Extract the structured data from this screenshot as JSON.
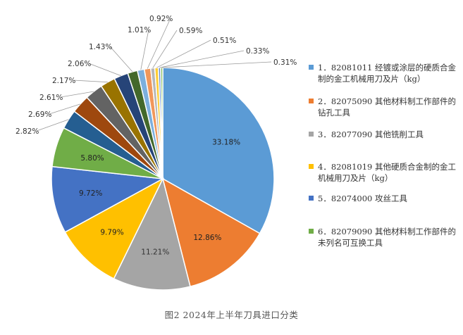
{
  "chart_data": {
    "type": "pie",
    "caption": "图2  2024年上半年刀具进口分类",
    "slices": [
      {
        "label": "33.18%",
        "value": 33.18,
        "color": "#5B9BD5"
      },
      {
        "label": "12.86%",
        "value": 12.86,
        "color": "#ED7D31"
      },
      {
        "label": "11.21%",
        "value": 11.21,
        "color": "#A5A5A5"
      },
      {
        "label": "9.79%",
        "value": 9.79,
        "color": "#FFC000"
      },
      {
        "label": "9.72%",
        "value": 9.72,
        "color": "#4472C4"
      },
      {
        "label": "5.80%",
        "value": 5.8,
        "color": "#70AD47"
      },
      {
        "label": "2.82%",
        "value": 2.82,
        "color": "#255E91"
      },
      {
        "label": "2.69%",
        "value": 2.69,
        "color": "#9E480E"
      },
      {
        "label": "2.61%",
        "value": 2.61,
        "color": "#636363"
      },
      {
        "label": "2.17%",
        "value": 2.17,
        "color": "#997300"
      },
      {
        "label": "2.06%",
        "value": 2.06,
        "color": "#264478"
      },
      {
        "label": "1.43%",
        "value": 1.43,
        "color": "#43682B"
      },
      {
        "label": "1.01%",
        "value": 1.01,
        "color": "#7CAFDD"
      },
      {
        "label": "0.92%",
        "value": 0.92,
        "color": "#F1975A"
      },
      {
        "label": "0.59%",
        "value": 0.59,
        "color": "#B7B7B7"
      },
      {
        "label": "0.51%",
        "value": 0.51,
        "color": "#FFCD33"
      },
      {
        "label": "0.33%",
        "value": 0.33,
        "color": "#698ED0"
      },
      {
        "label": "0.31%",
        "value": 0.31,
        "color": "#8CC168"
      }
    ],
    "legend": [
      {
        "text": "1．82081011 经镀或涂层的硬质合金制的金工机械用刀及片（kg）",
        "color": "#5B9BD5"
      },
      {
        "text": "2．82075090 其他材料制工作部件的钻孔工具",
        "color": "#ED7D31"
      },
      {
        "text": "3．82077090 其他铣削工具",
        "color": "#A5A5A5"
      },
      {
        "text": "4．82081019 其他硬质合金制的金工机械用刀及片（kg）",
        "color": "#FFC000"
      },
      {
        "text": "5．82074000 攻丝工具",
        "color": "#4472C4"
      },
      {
        "text": "6．82079090 其他材料制工作部件的未列名可互换工具",
        "color": "#70AD47"
      }
    ]
  }
}
